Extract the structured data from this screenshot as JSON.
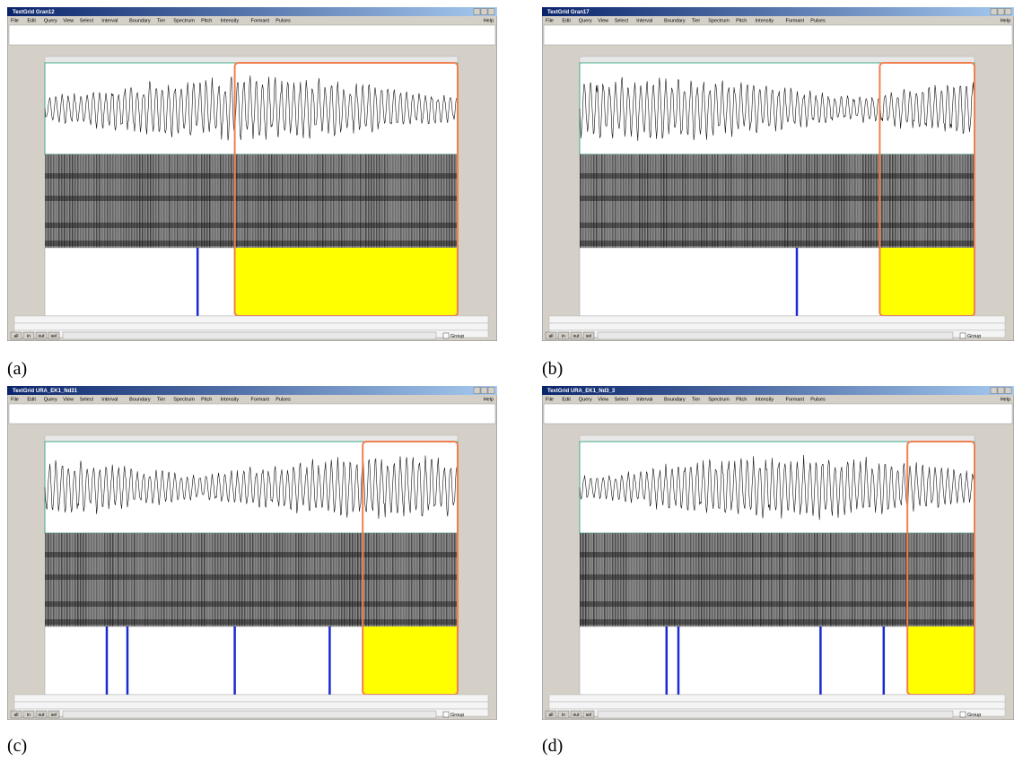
{
  "panels": [
    {
      "label": "(a)",
      "window_title": "TextGrid Gran12"
    },
    {
      "label": "(b)",
      "window_title": "TextGrid Gran17"
    },
    {
      "label": "(c)",
      "window_title": "TextGrid URA_EK1_Nd31"
    },
    {
      "label": "(d)",
      "window_title": "TextGrid URA_EK1_Nd3_3"
    }
  ],
  "menu": [
    "File",
    "Edit",
    "Query",
    "View",
    "Select",
    "Interval",
    "Boundary",
    "Tier",
    "Spectrum",
    "Pitch",
    "Intensity",
    "Formant",
    "Pulses"
  ],
  "help": "Help",
  "buttons": [
    "all",
    "in",
    "out",
    "sel"
  ],
  "group": "Group"
}
